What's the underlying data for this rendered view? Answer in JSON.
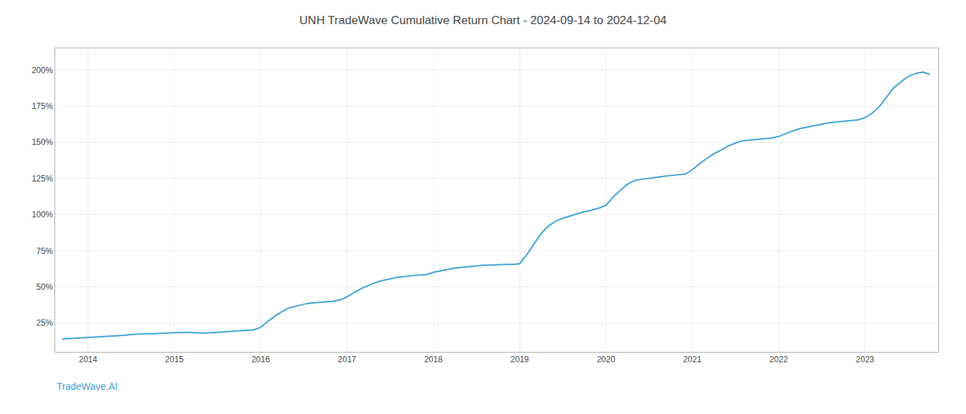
{
  "chart_data": {
    "type": "line",
    "title": "UNH TradeWave Cumulative Return Chart - 2024-09-14 to 2024-12-04",
    "annotations": [
      "TradeWave.AI"
    ],
    "x": [
      2013.7,
      2014.0,
      2014.08,
      2014.17,
      2014.25,
      2014.33,
      2014.42,
      2014.5,
      2014.58,
      2014.67,
      2014.75,
      2014.83,
      2014.92,
      2015.0,
      2015.08,
      2015.17,
      2015.25,
      2015.33,
      2015.42,
      2015.5,
      2015.58,
      2015.67,
      2015.75,
      2015.83,
      2015.92,
      2016.0,
      2016.08,
      2016.17,
      2016.25,
      2016.33,
      2016.42,
      2016.5,
      2016.58,
      2016.67,
      2016.75,
      2016.83,
      2016.92,
      2017.0,
      2017.08,
      2017.17,
      2017.25,
      2017.33,
      2017.42,
      2017.5,
      2017.58,
      2017.67,
      2017.75,
      2017.83,
      2017.92,
      2018.0,
      2018.08,
      2018.17,
      2018.25,
      2018.33,
      2018.42,
      2018.5,
      2018.58,
      2018.67,
      2018.75,
      2018.83,
      2018.92,
      2019.0,
      2019.08,
      2019.17,
      2019.25,
      2019.33,
      2019.42,
      2019.5,
      2019.58,
      2019.67,
      2019.75,
      2019.83,
      2019.92,
      2020.0,
      2020.08,
      2020.17,
      2020.25,
      2020.33,
      2020.42,
      2020.5,
      2020.58,
      2020.67,
      2020.75,
      2020.83,
      2020.92,
      2021.0,
      2021.08,
      2021.17,
      2021.25,
      2021.33,
      2021.42,
      2021.5,
      2021.58,
      2021.67,
      2021.75,
      2021.83,
      2021.92,
      2022.0,
      2022.08,
      2022.17,
      2022.25,
      2022.33,
      2022.42,
      2022.5,
      2022.58,
      2022.67,
      2022.75,
      2022.83,
      2022.92,
      2023.0,
      2023.08,
      2023.17,
      2023.25,
      2023.33,
      2023.42,
      2023.5,
      2023.58,
      2023.67,
      2023.75
    ],
    "values": [
      14.0,
      15.0,
      15.3,
      15.6,
      15.8,
      16.0,
      16.5,
      17.0,
      17.3,
      17.5,
      17.5,
      17.8,
      18.0,
      18.2,
      18.5,
      18.5,
      18.3,
      18.0,
      18.2,
      18.5,
      19.0,
      19.3,
      19.7,
      20.0,
      20.3,
      22.0,
      26.0,
      30.0,
      33.0,
      35.5,
      37.0,
      38.0,
      38.8,
      39.3,
      39.7,
      40.0,
      41.0,
      43.0,
      46.0,
      49.0,
      51.0,
      53.0,
      54.5,
      55.5,
      56.5,
      57.2,
      57.8,
      58.2,
      58.5,
      60.0,
      61.0,
      62.0,
      63.0,
      63.5,
      64.0,
      64.5,
      65.0,
      65.0,
      65.3,
      65.5,
      65.5,
      66.0,
      72.0,
      80.0,
      87.0,
      92.0,
      95.5,
      97.5,
      99.0,
      100.5,
      102.0,
      103.0,
      104.5,
      106.5,
      112.0,
      117.0,
      121.0,
      123.5,
      124.5,
      125.0,
      125.8,
      126.5,
      127.0,
      127.5,
      128.0,
      131.0,
      135.0,
      139.0,
      142.0,
      144.5,
      147.5,
      149.5,
      151.0,
      151.5,
      152.0,
      152.5,
      153.0,
      154.0,
      156.0,
      158.0,
      159.5,
      160.5,
      161.5,
      162.5,
      163.5,
      164.0,
      164.5,
      165.0,
      165.5,
      167.0,
      170.0,
      175.0,
      181.0,
      187.5,
      192.0,
      195.5,
      197.5,
      198.5,
      197.0
    ],
    "color": "#3a9fd4",
    "xlim": [
      2013.62,
      2023.85
    ],
    "xticks": [
      2014,
      2015,
      2016,
      2017,
      2018,
      2019,
      2020,
      2021,
      2022,
      2023
    ],
    "ylim": [
      5,
      215
    ],
    "yticks": [
      {
        "value": 25,
        "label": "25%"
      },
      {
        "value": 50,
        "label": "50%"
      },
      {
        "value": 75,
        "label": "75%"
      },
      {
        "value": 100,
        "label": "100%"
      },
      {
        "value": 125,
        "label": "125%"
      },
      {
        "value": 150,
        "label": "150%"
      },
      {
        "value": 175,
        "label": "175%"
      },
      {
        "value": 200,
        "label": "200%"
      }
    ],
    "grid": true
  }
}
